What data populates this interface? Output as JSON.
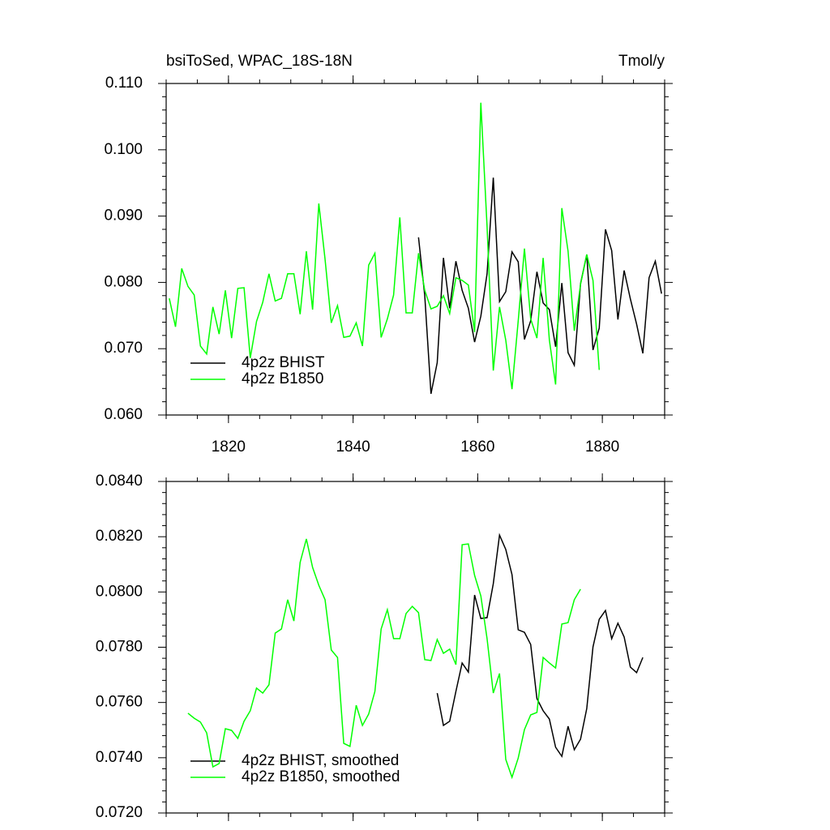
{
  "chart_data": [
    {
      "type": "line",
      "title": "bsiToSed, WPAC_18S-18N",
      "units": "Tmol/y",
      "xlim": [
        1810,
        1890
      ],
      "xticks": [
        1820,
        1840,
        1860,
        1880
      ],
      "show_xtick_labels": true,
      "ylim": [
        0.06,
        0.11
      ],
      "yticks": [
        {
          "value": 0.06,
          "label": "0.060"
        },
        {
          "value": 0.07,
          "label": "0.070"
        },
        {
          "value": 0.08,
          "label": "0.080"
        },
        {
          "value": 0.09,
          "label": "0.090"
        },
        {
          "value": 0.1,
          "label": "0.100"
        },
        {
          "value": 0.11,
          "label": "0.110"
        }
      ],
      "legend": "lower-left",
      "series": [
        {
          "name": "4p2z BHIST",
          "color": "#000000",
          "x": [
            1850.5,
            1851.5,
            1852.5,
            1853.5,
            1854.5,
            1855.5,
            1856.5,
            1857.5,
            1858.5,
            1859.5,
            1860.5,
            1861.5,
            1862.5,
            1863.5,
            1864.5,
            1865.5,
            1866.5,
            1867.5,
            1868.5,
            1869.5,
            1870.5,
            1871.5,
            1872.5,
            1873.5,
            1874.5,
            1875.5,
            1876.5,
            1877.5,
            1878.5,
            1879.5,
            1880.5,
            1881.5,
            1882.5,
            1883.5,
            1884.5,
            1885.5,
            1886.5,
            1887.5,
            1888.5,
            1889.5
          ],
          "values": [
            0.0868,
            0.078,
            0.0632,
            0.0679,
            0.0837,
            0.0761,
            0.0832,
            0.0788,
            0.0761,
            0.071,
            0.0749,
            0.0813,
            0.0958,
            0.0771,
            0.0786,
            0.0846,
            0.0831,
            0.0714,
            0.0742,
            0.0816,
            0.0769,
            0.0759,
            0.0703,
            0.0799,
            0.0694,
            0.0675,
            0.0798,
            0.0842,
            0.0698,
            0.0731,
            0.088,
            0.0848,
            0.0744,
            0.0818,
            0.0775,
            0.0737,
            0.0693,
            0.0807,
            0.0832,
            0.0783
          ]
        },
        {
          "name": "4p2z B1850",
          "color": "#00ff00",
          "x": [
            1810.5,
            1811.5,
            1812.5,
            1813.5,
            1814.5,
            1815.5,
            1816.5,
            1817.5,
            1818.5,
            1819.5,
            1820.5,
            1821.5,
            1822.5,
            1823.5,
            1824.5,
            1825.5,
            1826.5,
            1827.5,
            1828.5,
            1829.5,
            1830.5,
            1831.5,
            1832.5,
            1833.5,
            1834.5,
            1835.5,
            1836.5,
            1837.5,
            1838.5,
            1839.5,
            1840.5,
            1841.5,
            1842.5,
            1843.5,
            1844.5,
            1845.5,
            1846.5,
            1847.5,
            1848.5,
            1849.5,
            1850.5,
            1851.5,
            1852.5,
            1853.5,
            1854.5,
            1855.5,
            1856.5,
            1857.5,
            1858.5,
            1859.5,
            1860.5,
            1861.5,
            1862.5,
            1863.5,
            1864.5,
            1865.5,
            1866.5,
            1867.5,
            1868.5,
            1869.5,
            1870.5,
            1871.5,
            1872.5,
            1873.5,
            1874.5,
            1875.5,
            1876.5,
            1877.5,
            1878.5,
            1879.5
          ],
          "values": [
            0.0776,
            0.0733,
            0.0821,
            0.0794,
            0.0781,
            0.0704,
            0.0692,
            0.0763,
            0.0722,
            0.0788,
            0.0716,
            0.0791,
            0.0792,
            0.0686,
            0.0741,
            0.077,
            0.0813,
            0.0772,
            0.0776,
            0.0813,
            0.0813,
            0.0752,
            0.0847,
            0.0759,
            0.0919,
            0.0835,
            0.0739,
            0.0765,
            0.0717,
            0.0719,
            0.0739,
            0.0704,
            0.0826,
            0.0844,
            0.0717,
            0.0745,
            0.0781,
            0.0898,
            0.0754,
            0.0754,
            0.0844,
            0.0788,
            0.076,
            0.0764,
            0.078,
            0.0753,
            0.0807,
            0.0803,
            0.0796,
            0.0725,
            0.1071,
            0.0884,
            0.0667,
            0.0763,
            0.0713,
            0.0639,
            0.0742,
            0.0851,
            0.0745,
            0.0716,
            0.0837,
            0.0713,
            0.0646,
            0.0912,
            0.0847,
            0.0727,
            0.0797,
            0.0842,
            0.0803,
            0.0668
          ]
        }
      ]
    },
    {
      "type": "line",
      "xlim": [
        1810,
        1890
      ],
      "xticks": [
        1820,
        1840,
        1860,
        1880
      ],
      "show_xtick_labels": false,
      "ylim": [
        0.072,
        0.084
      ],
      "yticks": [
        {
          "value": 0.072,
          "label": "0.0720"
        },
        {
          "value": 0.074,
          "label": "0.0740"
        },
        {
          "value": 0.076,
          "label": "0.0760"
        },
        {
          "value": 0.078,
          "label": "0.0780"
        },
        {
          "value": 0.08,
          "label": "0.0800"
        },
        {
          "value": 0.082,
          "label": "0.0820"
        },
        {
          "value": 0.084,
          "label": "0.0840"
        }
      ],
      "legend": "lower-left",
      "series": [
        {
          "name": "4p2z BHIST, smoothed",
          "color": "#000000",
          "x": [
            1853.5,
            1854.5,
            1855.5,
            1856.5,
            1857.5,
            1858.5,
            1859.5,
            1860.5,
            1861.5,
            1862.5,
            1863.5,
            1864.5,
            1865.5,
            1866.5,
            1867.5,
            1868.5,
            1869.5,
            1870.5,
            1871.5,
            1872.5,
            1873.5,
            1874.5,
            1875.5,
            1876.5,
            1877.5,
            1878.5,
            1879.5,
            1880.5,
            1881.5,
            1882.5,
            1883.5,
            1884.5,
            1885.5,
            1886.5
          ],
          "values": [
            0.07634,
            0.07517,
            0.07532,
            0.0764,
            0.07743,
            0.0771,
            0.07989,
            0.07904,
            0.07907,
            0.0803,
            0.08206,
            0.08154,
            0.08063,
            0.07863,
            0.07854,
            0.0781,
            0.07614,
            0.0757,
            0.0754,
            0.07438,
            0.07405,
            0.07514,
            0.07429,
            0.07467,
            0.07578,
            0.07801,
            0.07901,
            0.07933,
            0.07831,
            0.07887,
            0.07837,
            0.07728,
            0.07708,
            0.07763
          ]
        },
        {
          "name": "4p2z B1850, smoothed",
          "color": "#00ff00",
          "x": [
            1813.5,
            1814.5,
            1815.5,
            1816.5,
            1817.5,
            1818.5,
            1819.5,
            1820.5,
            1821.5,
            1822.5,
            1823.5,
            1824.5,
            1825.5,
            1826.5,
            1827.5,
            1828.5,
            1829.5,
            1830.5,
            1831.5,
            1832.5,
            1833.5,
            1834.5,
            1835.5,
            1836.5,
            1837.5,
            1838.5,
            1839.5,
            1840.5,
            1841.5,
            1842.5,
            1843.5,
            1844.5,
            1845.5,
            1846.5,
            1847.5,
            1848.5,
            1849.5,
            1850.5,
            1851.5,
            1852.5,
            1853.5,
            1854.5,
            1855.5,
            1856.5,
            1857.5,
            1858.5,
            1859.5,
            1860.5,
            1861.5,
            1862.5,
            1863.5,
            1864.5,
            1865.5,
            1866.5,
            1867.5,
            1868.5,
            1869.5,
            1870.5,
            1871.5,
            1872.5,
            1873.5,
            1874.5,
            1875.5,
            1876.5
          ],
          "values": [
            0.07561,
            0.07543,
            0.07529,
            0.0749,
            0.07367,
            0.07379,
            0.07505,
            0.07499,
            0.0747,
            0.07532,
            0.0757,
            0.07652,
            0.07634,
            0.07664,
            0.07851,
            0.07866,
            0.07972,
            0.07895,
            0.08107,
            0.08192,
            0.08089,
            0.08024,
            0.07972,
            0.0779,
            0.07763,
            0.07452,
            0.07441,
            0.0759,
            0.07517,
            0.07558,
            0.0764,
            0.07866,
            0.07936,
            0.07831,
            0.07831,
            0.07922,
            0.07948,
            0.07925,
            0.07755,
            0.07752,
            0.07828,
            0.07778,
            0.07793,
            0.07737,
            0.08171,
            0.08174,
            0.0806,
            0.07986,
            0.07831,
            0.07634,
            0.07705,
            0.07394,
            0.07329,
            0.07399,
            0.07502,
            0.07555,
            0.07564,
            0.07763,
            0.07743,
            0.07725,
            0.07884,
            0.07889,
            0.07972,
            0.0801
          ]
        }
      ]
    }
  ]
}
